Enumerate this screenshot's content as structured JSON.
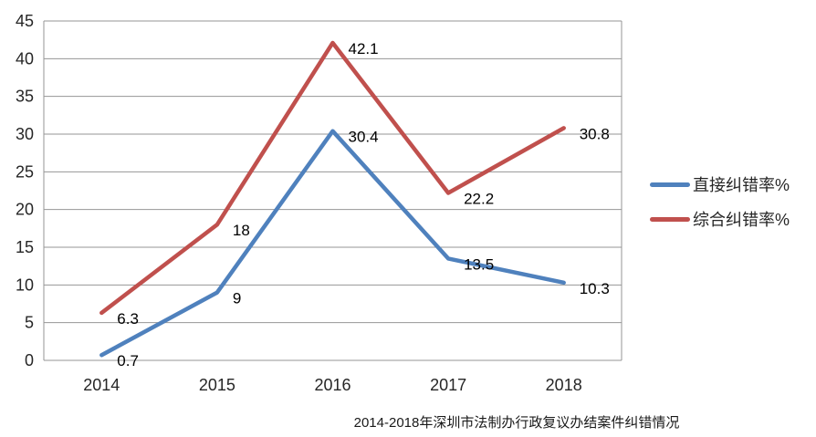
{
  "chart_data": {
    "type": "line",
    "title": "2014-2018年深圳市法制办行政复议办结案件纠错情况",
    "categories": [
      "2014",
      "2015",
      "2016",
      "2017",
      "2018"
    ],
    "series": [
      {
        "name": "直接纠错率%",
        "color": "#4F81BD",
        "values": [
          0.7,
          9,
          30.4,
          13.5,
          10.3
        ],
        "labels": [
          "0.7",
          "9",
          "30.4",
          "13.5",
          "10.3"
        ]
      },
      {
        "name": "综合纠错率%",
        "color": "#C0504D",
        "values": [
          6.3,
          18,
          42.1,
          22.2,
          30.8
        ],
        "labels": [
          "6.3",
          "18",
          "42.1",
          "22.2",
          "30.8"
        ]
      }
    ],
    "ylim": [
      0,
      45
    ],
    "ytick_step": 5,
    "yticks": [
      0,
      5,
      10,
      15,
      20,
      25,
      30,
      35,
      40,
      45
    ],
    "grid": "horizontal",
    "legend_position": "right",
    "data_labels": true
  },
  "styles": {
    "grid_color": "#969696",
    "tick_text_color": "#262626",
    "data_label_color": "#000000",
    "background": "#FFFFFF"
  }
}
